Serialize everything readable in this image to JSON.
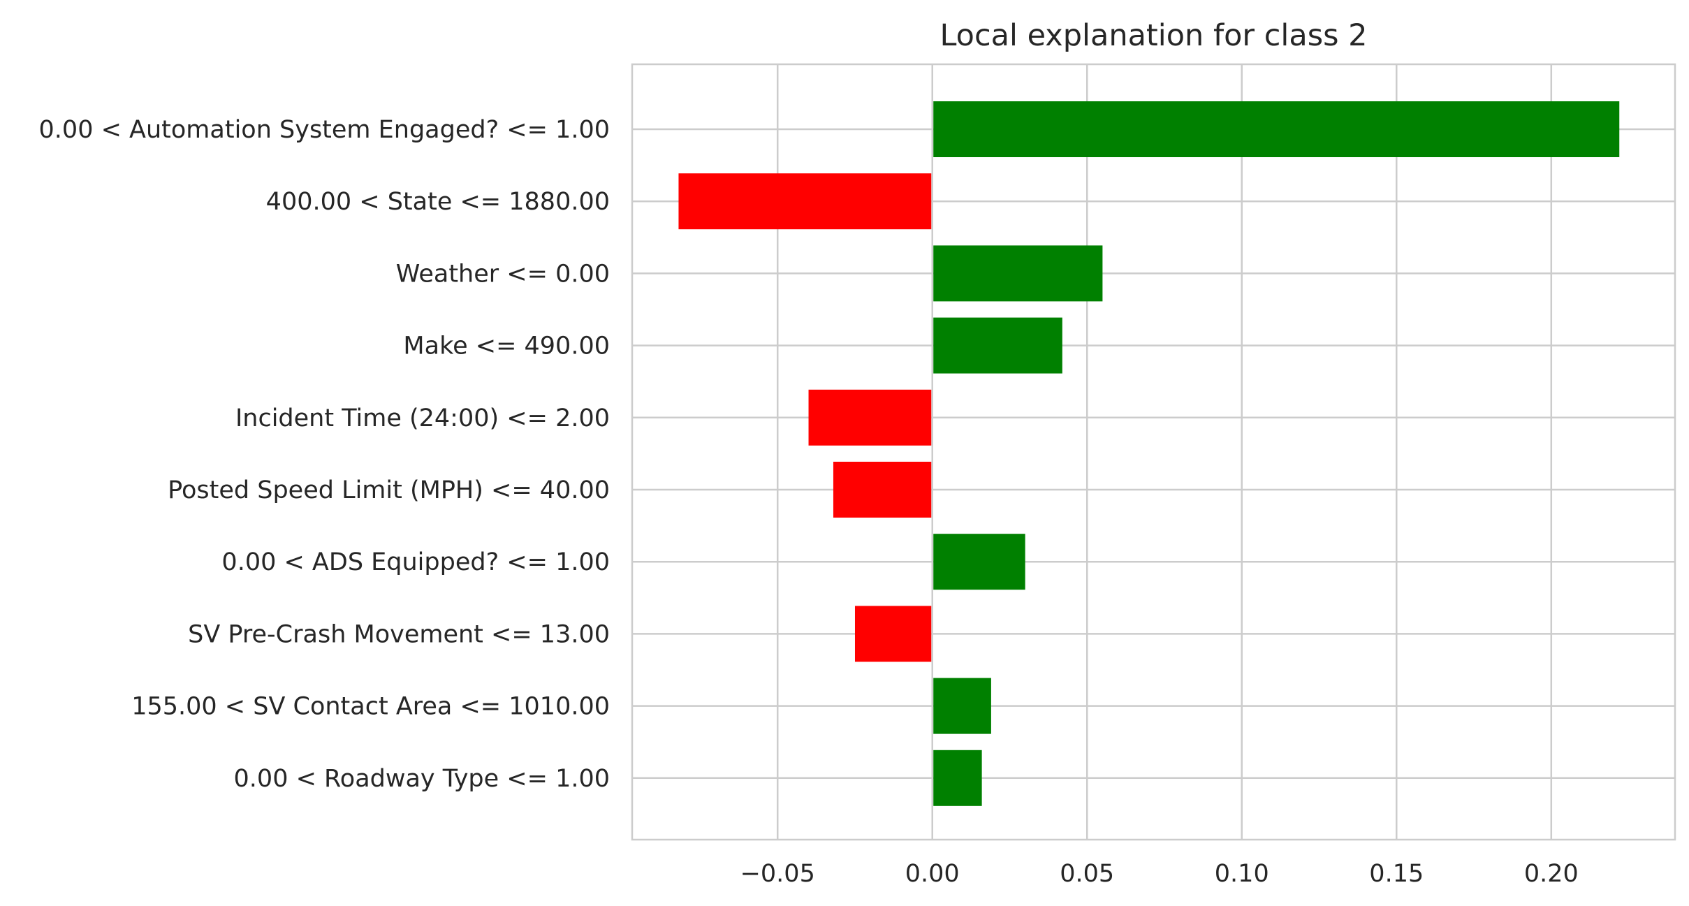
{
  "chart_data": {
    "type": "bar",
    "orientation": "horizontal",
    "title": "Local explanation for class 2",
    "xlabel": "",
    "ylabel": "",
    "grid": true,
    "xlim": [
      -0.097,
      0.24
    ],
    "xticks": [
      -0.05,
      0.0,
      0.05,
      0.1,
      0.15,
      0.2
    ],
    "xtick_labels": [
      "−0.05",
      "0.00",
      "0.05",
      "0.10",
      "0.15",
      "0.20"
    ],
    "categories": [
      "0.00 < Automation System Engaged? <= 1.00",
      "400.00 < State <= 1880.00",
      "Weather <= 0.00",
      "Make <= 490.00",
      "Incident Time (24:00) <= 2.00",
      "Posted Speed Limit (MPH) <= 40.00",
      "0.00 < ADS Equipped? <= 1.00",
      "SV Pre-Crash Movement <= 13.00",
      "155.00 < SV Contact Area <= 1010.00",
      "0.00 < Roadway Type <= 1.00"
    ],
    "values": [
      0.222,
      -0.082,
      0.055,
      0.042,
      -0.04,
      -0.032,
      0.03,
      -0.025,
      0.019,
      0.016
    ],
    "colors": {
      "positive": "#008000",
      "negative": "#ff0000"
    }
  }
}
